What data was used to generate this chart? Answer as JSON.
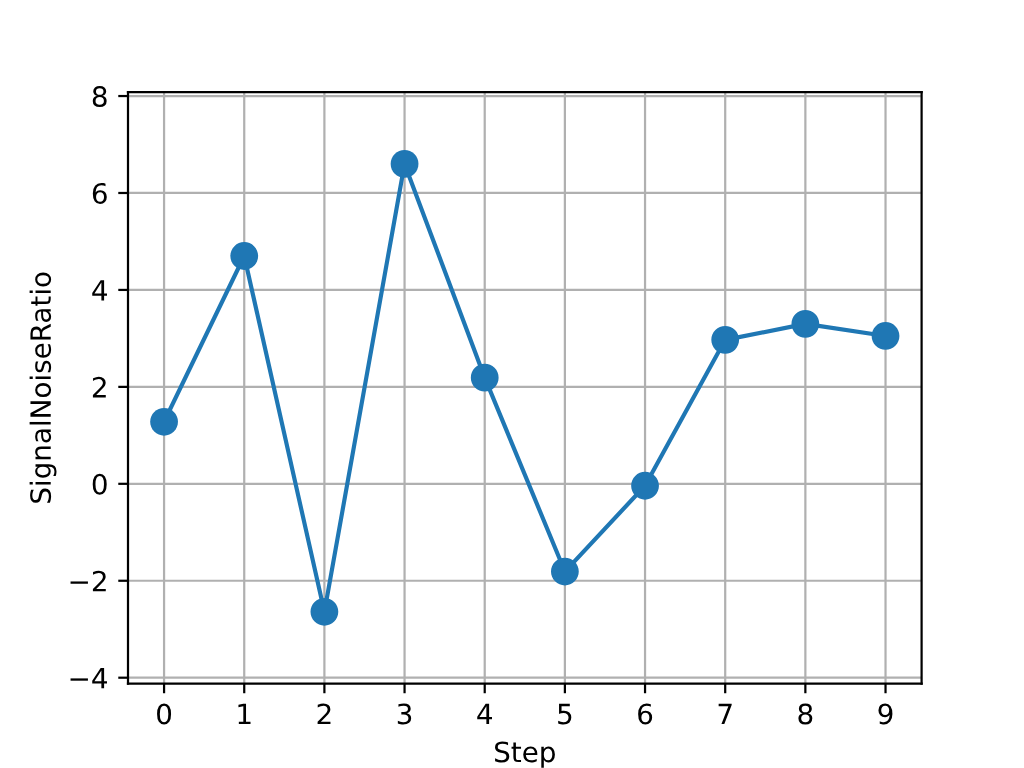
{
  "chart_data": {
    "type": "line",
    "xlabel": "Step",
    "ylabel": "SignalNoiseRatio",
    "x": [
      0,
      1,
      2,
      3,
      4,
      5,
      6,
      7,
      8,
      9
    ],
    "series": [
      {
        "color": "#1f77b4",
        "values": [
          1.28,
          4.7,
          -2.64,
          6.6,
          2.19,
          -1.81,
          -0.04,
          2.97,
          3.3,
          3.05
        ]
      }
    ],
    "xlim": [
      -0.45,
      9.45
    ],
    "xticks": [
      0,
      1,
      2,
      3,
      4,
      5,
      6,
      7,
      8,
      9
    ],
    "ylim": [
      -4.12,
      8.08
    ],
    "yticks": [
      {
        "value": -4,
        "label": "−4"
      },
      {
        "value": -2,
        "label": "−2"
      },
      0,
      2,
      4,
      6,
      8
    ],
    "grid": true,
    "marker": "circle",
    "line_style": "solid"
  }
}
